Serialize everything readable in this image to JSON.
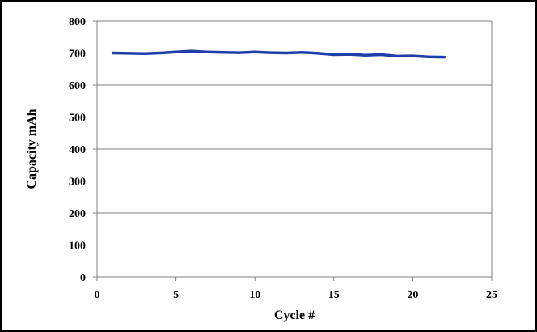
{
  "chart_data": {
    "type": "line",
    "title": "",
    "xlabel": "Cycle #",
    "ylabel": "Capacity  mAh",
    "xlim": [
      0,
      25
    ],
    "ylim": [
      0,
      800
    ],
    "x_ticks": [
      0,
      5,
      10,
      15,
      20,
      25
    ],
    "y_ticks": [
      0,
      100,
      200,
      300,
      400,
      500,
      600,
      700,
      800
    ],
    "grid": "horizontal",
    "legend": "none",
    "series": [
      {
        "color": "#1f3fa8",
        "x": [
          1,
          2,
          3,
          4,
          5,
          6,
          7,
          8,
          9,
          10,
          11,
          12,
          13,
          14,
          15,
          16,
          17,
          18,
          19,
          20,
          21,
          22
        ],
        "y": [
          700,
          699,
          698,
          700,
          703,
          706,
          703,
          702,
          701,
          703,
          701,
          700,
          702,
          699,
          695,
          696,
          693,
          695,
          690,
          691,
          688,
          687
        ]
      }
    ]
  }
}
